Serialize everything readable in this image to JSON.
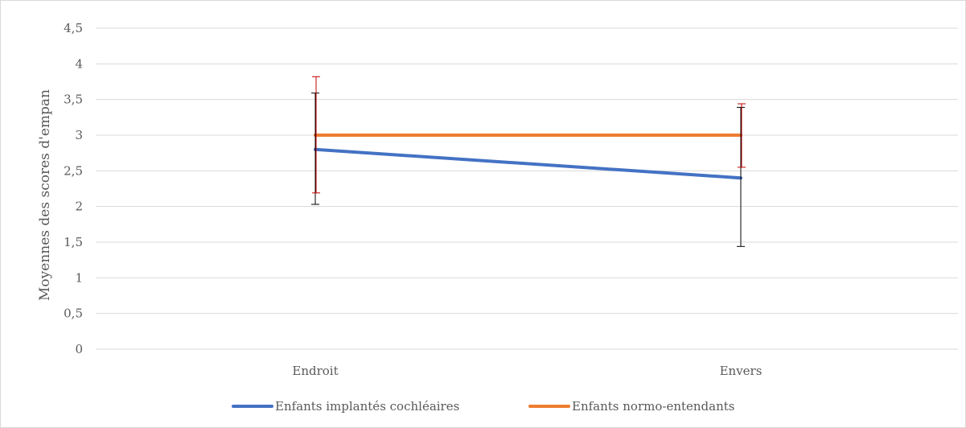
{
  "chart_data": {
    "type": "line",
    "title": "",
    "xlabel": "",
    "ylabel": "Moyennes des scores d'empan",
    "categories": [
      "Endroit",
      "Envers"
    ],
    "ylim": [
      0,
      4.5
    ],
    "yticks": [
      0,
      0.5,
      1,
      1.5,
      2,
      2.5,
      3,
      3.5,
      4,
      4.5
    ],
    "ytick_labels": [
      "0",
      "0,5",
      "1",
      "1,5",
      "2",
      "2,5",
      "3",
      "3,5",
      "4",
      "4,5"
    ],
    "grid": true,
    "legend_position": "bottom",
    "series": [
      {
        "name": "Enfants implantés cochléaires",
        "color": "#4472c4",
        "values": [
          2.8,
          2.4
        ],
        "error_low": [
          2.03,
          1.44
        ],
        "error_high": [
          3.59,
          3.39
        ],
        "error_color": "#000000"
      },
      {
        "name": "Enfants normo-entendants",
        "color": "#ed7d31",
        "values": [
          3.0,
          3.0
        ],
        "error_low": [
          2.19,
          2.55
        ],
        "error_high": [
          3.82,
          3.44
        ],
        "error_color": "#c00000"
      }
    ]
  }
}
